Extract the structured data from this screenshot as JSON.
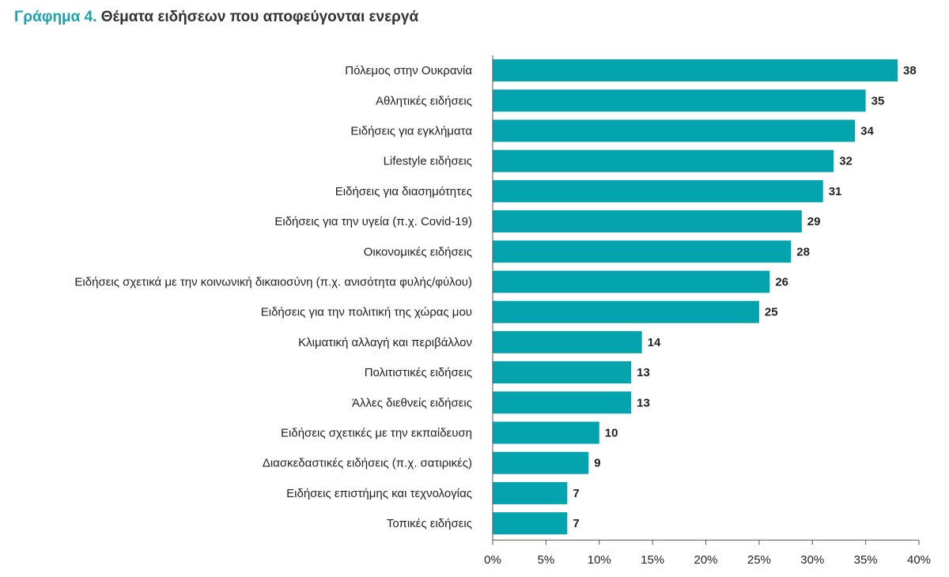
{
  "title": {
    "prefix": "Γράφημα 4.",
    "text": "Θέματα ειδήσεων που αποφεύγονται ενεργά"
  },
  "colors": {
    "bar": "#03a4ad",
    "title_prefix": "#1ba3ad",
    "text": "#222222",
    "axis": "#555555"
  },
  "chart_data": {
    "type": "bar",
    "orientation": "horizontal",
    "categories": [
      "Πόλεμος στην Ουκρανία",
      "Αθλητικές ειδήσεις",
      "Ειδήσεις για εγκλήματα",
      "Lifestyle ειδήσεις",
      "Ειδήσεις για διασημότητες",
      "Ειδήσεις για την υγεία (π.χ. Covid-19)",
      "Οικονομικές ειδήσεις",
      "Ειδήσεις σχετικά με την κοινωνική δικαιοσύνη (π.χ. ανισότητα φυλής/φύλου)",
      "Ειδήσεις για την πολιτική της χώρας μου",
      "Κλιματική αλλαγή και περιβάλλον",
      "Πολιτιστικές ειδήσεις",
      "Άλλες διεθνείς ειδήσεις",
      "Ειδήσεις σχετικές με την εκπαίδευση",
      "Διασκεδαστικές ειδήσεις (π.χ. σατιρικές)",
      "Ειδήσεις επιστήμης και τεχνολογίας",
      "Τοπικές ειδήσεις"
    ],
    "values": [
      38,
      35,
      34,
      32,
      31,
      29,
      28,
      26,
      25,
      14,
      13,
      13,
      10,
      9,
      7,
      7
    ],
    "xlim": [
      0,
      40
    ],
    "x_ticks": [
      "0%",
      "5%",
      "10%",
      "15%",
      "20%",
      "25%",
      "30%",
      "35%",
      "40%"
    ],
    "grid": false,
    "legend": "none"
  }
}
